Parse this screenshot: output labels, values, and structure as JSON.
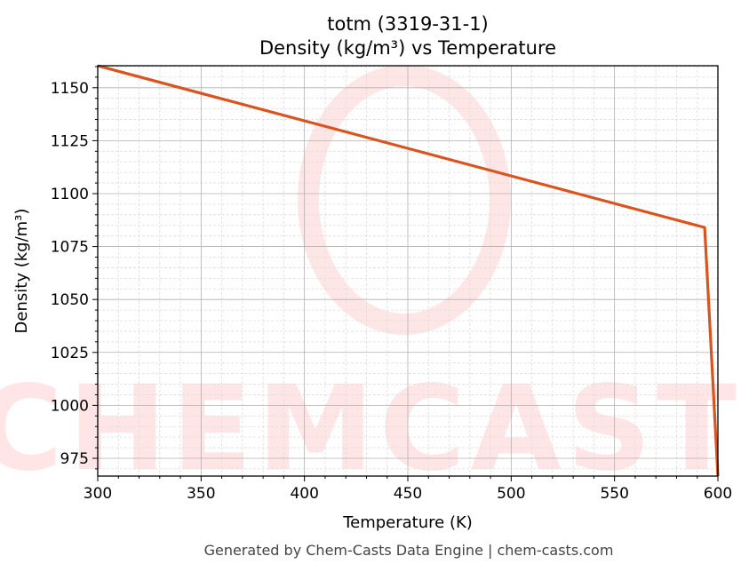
{
  "chart_data": {
    "type": "line",
    "title": "totm (3319-31-1)",
    "subtitle": "Density (kg/m³) vs Temperature",
    "xlabel": "Temperature (K)",
    "ylabel": "Density (kg/m³)",
    "xlim": [
      300,
      600
    ],
    "ylim": [
      966.6,
      1160.4
    ],
    "xticks": [
      300,
      350,
      400,
      450,
      500,
      550,
      600
    ],
    "yticks": [
      975,
      1000,
      1025,
      1050,
      1075,
      1100,
      1125,
      1150
    ],
    "grid": true,
    "series": [
      {
        "x": [
          300,
          593.6,
          600
        ],
        "y": [
          1160.4,
          1084,
          966.6
        ],
        "color": "#d9541e"
      }
    ],
    "footer": "Generated by Chem-Casts Data Engine | chem-casts.com",
    "watermark": "CHEMCASTS"
  }
}
